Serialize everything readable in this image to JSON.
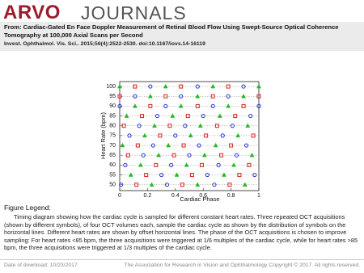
{
  "header": {
    "logo_left": "ARVO",
    "logo_right": "JOURNALS"
  },
  "citation": {
    "from_label": "From:",
    "title": "Cardiac-Gated En Face Doppler Measurement of Retinal Blood Flow Using Swept-Source Optical Coherence Tomography at 100,000 Axial Scans per Second",
    "journal": "Invest. Ophthalmol. Vis. Sci.. 2015;56(4):2522-2530. doi:10.1167/iovs.14-16119"
  },
  "chart_data": {
    "type": "scatter",
    "xlabel": "Cardiac Phase",
    "ylabel": "Heart Rate (bpm)",
    "xlim": [
      0,
      1
    ],
    "ylim": [
      47,
      102.5
    ],
    "xticks": [
      0,
      0.2,
      0.4,
      0.6,
      0.8,
      1
    ],
    "yticks": [
      50,
      55,
      60,
      65,
      70,
      75,
      80,
      85,
      90,
      95,
      100
    ],
    "grid": true,
    "series": [
      {
        "color": "#22bb22",
        "marker": "triangle",
        "x": [
          0,
          0.33,
          0.67,
          1,
          0.22,
          0.56,
          0.89,
          0.11,
          0.44,
          0.78,
          0.05,
          0.38,
          0.72,
          0.25,
          0.58,
          0.92,
          0.18,
          0.51,
          0.85,
          0.02,
          0.35,
          0.69,
          0.28,
          0.61,
          0.95,
          0.15,
          0.48,
          0.82,
          0.08,
          0.41,
          0.75,
          0.23,
          0.56,
          0.9
        ],
        "y": [
          100,
          100,
          100,
          100,
          95,
          95,
          95,
          90,
          90,
          90,
          85,
          85,
          85,
          80,
          80,
          80,
          75,
          75,
          75,
          70,
          70,
          70,
          65,
          65,
          65,
          60,
          60,
          60,
          55,
          55,
          55,
          50,
          50,
          50
        ]
      },
      {
        "color": "#dd2222",
        "marker": "square",
        "x": [
          0.11,
          0.44,
          0.78,
          0,
          0.33,
          0.67,
          1,
          0.22,
          0.56,
          0.89,
          0.16,
          0.49,
          0.83,
          0.03,
          0.36,
          0.7,
          0.29,
          0.62,
          0.96,
          0.13,
          0.46,
          0.8,
          0.06,
          0.39,
          0.73,
          0.26,
          0.59,
          0.93,
          0.19,
          0.52,
          0.86,
          0.12,
          0.45,
          0.79
        ],
        "y": [
          100,
          100,
          100,
          95,
          95,
          95,
          95,
          90,
          90,
          90,
          85,
          85,
          85,
          80,
          80,
          80,
          75,
          75,
          75,
          70,
          70,
          70,
          65,
          65,
          65,
          60,
          60,
          60,
          55,
          55,
          55,
          50,
          50,
          50
        ]
      },
      {
        "color": "#2233cc",
        "marker": "circle",
        "x": [
          0.22,
          0.56,
          0.89,
          0.11,
          0.44,
          0.78,
          0,
          0.33,
          0.67,
          1,
          0.27,
          0.6,
          0.94,
          0.14,
          0.47,
          0.81,
          0.07,
          0.4,
          0.74,
          0.24,
          0.57,
          0.91,
          0.17,
          0.5,
          0.84,
          0.04,
          0.37,
          0.71,
          0.3,
          0.63,
          0.97,
          0.01,
          0.34,
          0.68
        ],
        "y": [
          100,
          100,
          100,
          95,
          95,
          95,
          90,
          90,
          90,
          90,
          85,
          85,
          85,
          80,
          80,
          80,
          75,
          75,
          75,
          70,
          70,
          70,
          65,
          65,
          65,
          60,
          60,
          60,
          55,
          55,
          55,
          50,
          50,
          50
        ]
      }
    ]
  },
  "legend": {
    "heading": "Figure Legend:",
    "text": "Timing diagram showing how the cardiac cycle is sampled for different constant heart rates. Three repeated OCT acquisitions (shown by different symbols), of four OCT volumes each, sample the cardiac cycle as shown by the distribution of symbols on the horizontal lines. Different heart rates are shown by offset horizontal lines. The phase of the OCT acquisitions is chosen to improve sampling: For heart rates <85 bpm, the three acquisitions were triggered at 1/6 multiples of the cardiac cycle, while for heart rates >85 bpm, the three acquisitions were triggered at 1/3 multiples of the cardiac cycle."
  },
  "footer": {
    "date": "Date of download: 10/23/2017",
    "copyright": "The Association for Research in Vision and Ophthalmology Copyright © 2017. All rights reserved."
  }
}
